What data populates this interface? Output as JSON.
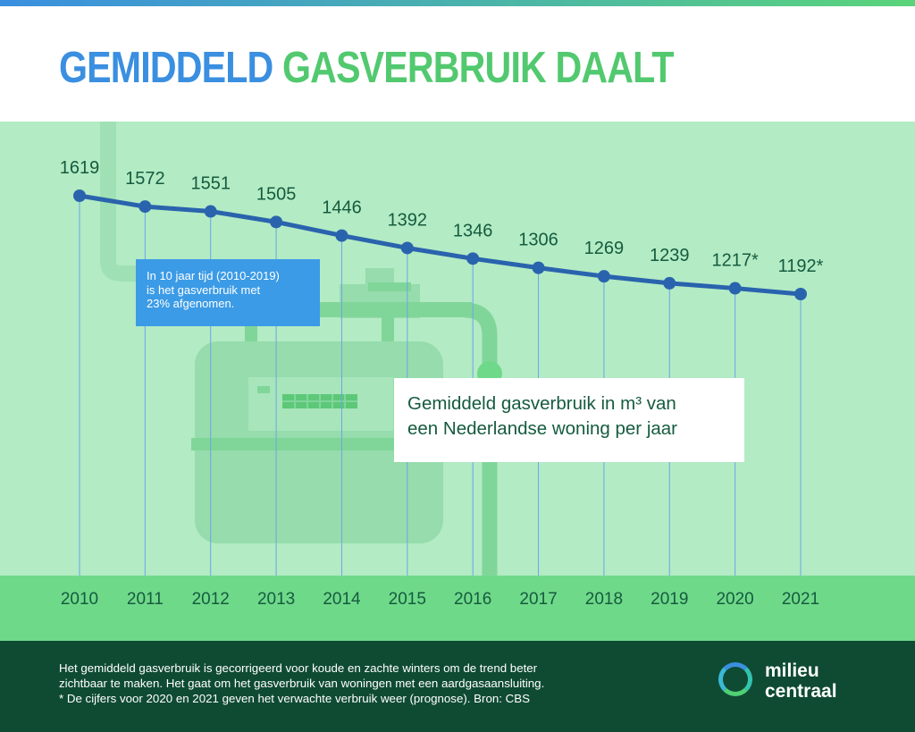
{
  "title": {
    "part1": "GEMIDDELD ",
    "part2": "GASVERBRUIK DAALT"
  },
  "colors": {
    "title_blue": "#3a8fe0",
    "title_green": "#52c96f",
    "line": "#2a63ad",
    "background": "#b3ebc4",
    "year_band": "#6fd98a",
    "footer": "#0f4b33",
    "callout": "#3b9be6",
    "label_text": "#155b3e"
  },
  "callout": {
    "lines": [
      "In 10 jaar tijd (2010-2019)",
      "is het gasverbruik met",
      "23% afgenomen."
    ]
  },
  "legend": {
    "line1": "Gemiddeld gasverbruik in m³ van",
    "line2": "een Nederlandse woning per jaar"
  },
  "chart_data": {
    "type": "line",
    "x": [
      "2010",
      "2011",
      "2012",
      "2013",
      "2014",
      "2015",
      "2016",
      "2017",
      "2018",
      "2019",
      "2020",
      "2021"
    ],
    "values": [
      1619,
      1572,
      1551,
      1505,
      1446,
      1392,
      1346,
      1306,
      1269,
      1239,
      1217,
      1192
    ],
    "data_labels": [
      "1619",
      "1572",
      "1551",
      "1505",
      "1446",
      "1392",
      "1346",
      "1306",
      "1269",
      "1239",
      "1217*",
      "1192*"
    ],
    "ylabel": "Gemiddeld gasverbruik in m³ van een Nederlandse woning per jaar",
    "grid": false
  },
  "footer": {
    "notes": [
      "Het gemiddeld gasverbruik is gecorrigeerd voor koude en zachte winters om de trend beter",
      "zichtbaar te maken. Het gaat om het gasverbruik van woningen met een aardgasaansluiting.",
      "* De cijfers voor 2020 en 2021 geven het verwachte verbruik weer (prognose). Bron: CBS"
    ],
    "logo": {
      "line1": "milieu",
      "line2": "centraal"
    }
  }
}
